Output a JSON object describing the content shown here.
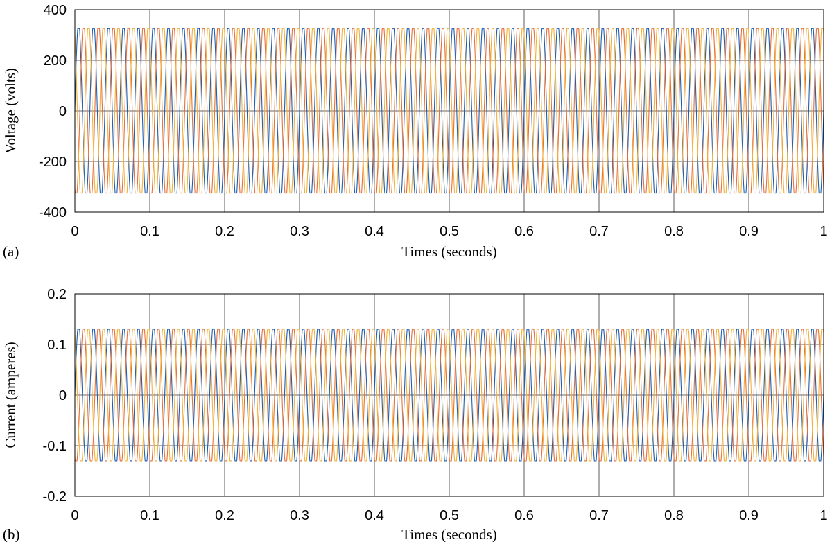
{
  "chart_data": [
    {
      "type": "line",
      "panel_label": "(a)",
      "title": "",
      "xlabel": "Times (seconds)",
      "ylabel": "Voltage (volts)",
      "xlim": [
        0,
        1
      ],
      "ylim": [
        -400,
        400
      ],
      "xticks": [
        0,
        0.1,
        0.2,
        0.3,
        0.4,
        0.5,
        0.6,
        0.7,
        0.8,
        0.9,
        1
      ],
      "xtick_labels": [
        "0",
        "0.1",
        "0.2",
        "0.3",
        "0.4",
        "0.5",
        "0.6",
        "0.7",
        "0.8",
        "0.9",
        "1"
      ],
      "yticks": [
        -400,
        -200,
        0,
        200,
        400
      ],
      "ytick_labels": [
        "-400",
        "-200",
        "0",
        "200",
        "400"
      ],
      "grid": true,
      "waveform": {
        "kind": "three-phase",
        "frequency_hz": 50,
        "amplitude": 325,
        "phase_shift_deg": [
          0,
          -120,
          120
        ]
      },
      "series": [
        {
          "color": "#1f5fb0"
        },
        {
          "color": "#e8703a"
        },
        {
          "color": "#f2b13a"
        }
      ]
    },
    {
      "type": "line",
      "panel_label": "(b)",
      "title": "",
      "xlabel": "Times (seconds)",
      "ylabel": "Current (amperes)",
      "xlim": [
        0,
        1
      ],
      "ylim": [
        -0.2,
        0.2
      ],
      "xticks": [
        0,
        0.1,
        0.2,
        0.3,
        0.4,
        0.5,
        0.6,
        0.7,
        0.8,
        0.9,
        1
      ],
      "xtick_labels": [
        "0",
        "0.1",
        "0.2",
        "0.3",
        "0.4",
        "0.5",
        "0.6",
        "0.7",
        "0.8",
        "0.9",
        "1"
      ],
      "yticks": [
        -0.2,
        -0.1,
        0,
        0.1,
        0.2
      ],
      "ytick_labels": [
        "-0.2",
        "-0.1",
        "0",
        "0.1",
        "0.2"
      ],
      "grid": true,
      "waveform": {
        "kind": "three-phase",
        "frequency_hz": 50,
        "amplitude": 0.13,
        "phase_shift_deg": [
          0,
          -120,
          120
        ]
      },
      "series": [
        {
          "color": "#1f5fb0"
        },
        {
          "color": "#e8703a"
        },
        {
          "color": "#f2b13a"
        }
      ]
    }
  ]
}
